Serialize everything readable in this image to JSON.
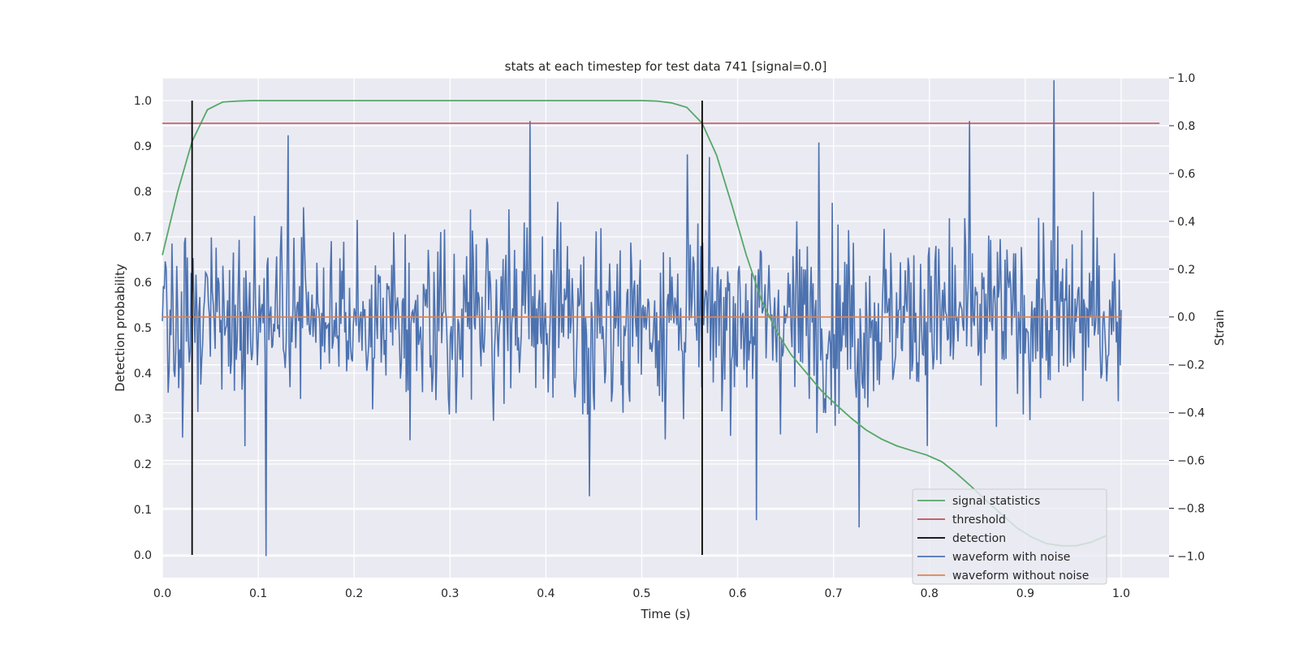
{
  "chart_data": {
    "type": "line",
    "title": "stats at each timestep for test data 741 [signal=0.0]",
    "xlabel": "Time (s)",
    "ylabel_left": "Detection probability",
    "ylabel_right": "Strain",
    "xlim": [
      0.0,
      1.05
    ],
    "ylim_left": [
      -0.05,
      1.05
    ],
    "ylim_right": [
      -1.09,
      1.0
    ],
    "x_ticks": [
      "0.0",
      "0.1",
      "0.2",
      "0.3",
      "0.4",
      "0.5",
      "0.6",
      "0.7",
      "0.8",
      "0.9",
      "1.0"
    ],
    "y_ticks_left": [
      "0.0",
      "0.1",
      "0.2",
      "0.3",
      "0.4",
      "0.5",
      "0.6",
      "0.7",
      "0.8",
      "0.9",
      "1.0"
    ],
    "y_ticks_right": [
      "−1.0",
      "−0.8",
      "−0.6",
      "−0.4",
      "−0.2",
      "0.0",
      "0.2",
      "0.4",
      "0.6",
      "0.8",
      "1.0"
    ],
    "grid": true,
    "legend_position": "lower-right",
    "colors": {
      "background": "#eaeaf2",
      "signal_statistics": "#55a868",
      "threshold": "#c44e52",
      "detection": "#000000",
      "waveform_with_noise": "#4c72b0",
      "waveform_without_noise": "#dd8452"
    },
    "series": [
      {
        "name": "signal statistics",
        "axis": "left",
        "x": [
          0.0,
          0.016,
          0.031,
          0.047,
          0.063,
          0.078,
          0.094,
          0.125,
          0.2,
          0.3,
          0.4,
          0.5,
          0.516,
          0.531,
          0.547,
          0.563,
          0.578,
          0.594,
          0.609,
          0.625,
          0.641,
          0.656,
          0.672,
          0.688,
          0.703,
          0.719,
          0.734,
          0.75,
          0.766,
          0.781,
          0.797,
          0.813,
          0.828,
          0.844,
          0.859,
          0.875,
          0.891,
          0.906,
          0.922,
          0.938,
          0.953,
          0.969,
          0.984
        ],
        "y": [
          0.66,
          0.8,
          0.91,
          0.98,
          0.997,
          0.999,
          1.0,
          1.0,
          1.0,
          1.0,
          1.0,
          1.0,
          0.999,
          0.995,
          0.985,
          0.95,
          0.88,
          0.77,
          0.66,
          0.56,
          0.49,
          0.44,
          0.4,
          0.36,
          0.33,
          0.3,
          0.275,
          0.255,
          0.24,
          0.23,
          0.22,
          0.205,
          0.18,
          0.15,
          0.12,
          0.09,
          0.06,
          0.04,
          0.025,
          0.02,
          0.02,
          0.028,
          0.042
        ]
      },
      {
        "name": "threshold",
        "axis": "left",
        "x": [
          0.0,
          1.04
        ],
        "y": [
          0.95,
          0.95
        ]
      },
      {
        "name": "detection",
        "axis": "left",
        "type": "vlines",
        "x": [
          0.031,
          0.563
        ],
        "ymin": 0.0,
        "ymax": 1.0
      },
      {
        "name": "waveform with noise",
        "axis": "right",
        "x_range": [
          0.0,
          1.0
        ],
        "n_points": 1000,
        "amplitude_sd": 0.19,
        "peaks": [
          {
            "x": 0.108,
            "y": -1.0
          },
          {
            "x": 0.131,
            "y": 0.76
          },
          {
            "x": 0.383,
            "y": 0.82
          },
          {
            "x": 0.445,
            "y": -0.75
          },
          {
            "x": 0.548,
            "y": 0.68
          },
          {
            "x": 0.62,
            "y": -0.85
          },
          {
            "x": 0.685,
            "y": 0.73
          },
          {
            "x": 0.727,
            "y": -0.88
          },
          {
            "x": 0.842,
            "y": 0.82
          },
          {
            "x": 0.93,
            "y": 0.99
          }
        ]
      },
      {
        "name": "waveform without noise",
        "axis": "right",
        "x": [
          0.0,
          1.0
        ],
        "y": [
          0.0,
          0.0
        ]
      }
    ]
  }
}
